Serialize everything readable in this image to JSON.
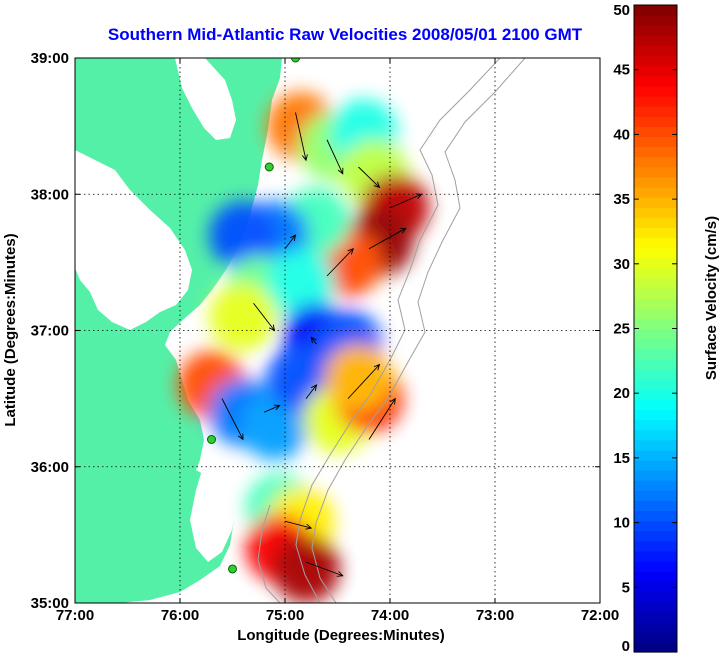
{
  "chart_data": {
    "type": "heatmap",
    "title": "Southern Mid-Atlantic Raw Velocities 2008/05/01 2100 GMT",
    "xlabel": "Longitude (Degrees:Minutes)",
    "ylabel": "Latitude (Degrees:Minutes)",
    "xlim": [
      -77,
      -72
    ],
    "ylim": [
      35,
      39
    ],
    "x_ticks": [
      {
        "value": -77,
        "label": "77:00"
      },
      {
        "value": -76,
        "label": "76:00"
      },
      {
        "value": -75,
        "label": "75:00"
      },
      {
        "value": -74,
        "label": "74:00"
      },
      {
        "value": -73,
        "label": "73:00"
      },
      {
        "value": -72,
        "label": "72:00"
      }
    ],
    "y_ticks": [
      {
        "value": 35,
        "label": "35:00"
      },
      {
        "value": 36,
        "label": "36:00"
      },
      {
        "value": 37,
        "label": "37:00"
      },
      {
        "value": 38,
        "label": "38:00"
      },
      {
        "value": 39,
        "label": "39:00"
      }
    ],
    "grid": true,
    "land_color": "#55f0a8",
    "colorbar": {
      "label": "Surface Velocity (cm/s)",
      "min": 0,
      "max": 50,
      "ticks": [
        0,
        5,
        10,
        15,
        20,
        25,
        30,
        35,
        40,
        45,
        50
      ],
      "colormap": "jet",
      "placement": "right"
    },
    "regions": [
      {
        "lon": -74.85,
        "lat": 38.5,
        "value": 38
      },
      {
        "lon": -74.55,
        "lat": 38.35,
        "value": 26
      },
      {
        "lon": -74.25,
        "lat": 38.45,
        "value": 20
      },
      {
        "lon": -74.15,
        "lat": 38.15,
        "value": 28
      },
      {
        "lon": -73.95,
        "lat": 37.9,
        "value": 47
      },
      {
        "lon": -74.1,
        "lat": 37.65,
        "value": 49
      },
      {
        "lon": -74.4,
        "lat": 37.5,
        "value": 40
      },
      {
        "lon": -74.7,
        "lat": 37.8,
        "value": 22
      },
      {
        "lon": -75.1,
        "lat": 37.7,
        "value": 12
      },
      {
        "lon": -75.4,
        "lat": 37.7,
        "value": 10
      },
      {
        "lon": -75.25,
        "lat": 37.3,
        "value": 24
      },
      {
        "lon": -74.85,
        "lat": 37.35,
        "value": 20
      },
      {
        "lon": -75.4,
        "lat": 37.1,
        "value": 30
      },
      {
        "lon": -74.7,
        "lat": 36.95,
        "value": 6
      },
      {
        "lon": -74.4,
        "lat": 36.9,
        "value": 10
      },
      {
        "lon": -75.7,
        "lat": 36.6,
        "value": 40
      },
      {
        "lon": -75.4,
        "lat": 36.4,
        "value": 12
      },
      {
        "lon": -75.1,
        "lat": 36.3,
        "value": 14
      },
      {
        "lon": -74.85,
        "lat": 36.65,
        "value": 10
      },
      {
        "lon": -74.5,
        "lat": 36.35,
        "value": 30
      },
      {
        "lon": -74.2,
        "lat": 36.5,
        "value": 42
      },
      {
        "lon": -74.3,
        "lat": 36.65,
        "value": 35
      },
      {
        "lon": -75.05,
        "lat": 35.7,
        "value": 22
      },
      {
        "lon": -74.85,
        "lat": 35.6,
        "value": 32
      },
      {
        "lon": -75.05,
        "lat": 35.4,
        "value": 44
      },
      {
        "lon": -74.8,
        "lat": 35.25,
        "value": 48
      }
    ],
    "arrows": [
      {
        "lon": -74.9,
        "lat": 38.6,
        "u": 0.1,
        "v": -0.35
      },
      {
        "lon": -74.6,
        "lat": 38.4,
        "u": 0.15,
        "v": -0.25
      },
      {
        "lon": -74.3,
        "lat": 38.2,
        "u": 0.2,
        "v": -0.15
      },
      {
        "lon": -74.0,
        "lat": 37.9,
        "u": 0.3,
        "v": 0.1
      },
      {
        "lon": -74.2,
        "lat": 37.6,
        "u": 0.35,
        "v": 0.15
      },
      {
        "lon": -74.6,
        "lat": 37.4,
        "u": 0.25,
        "v": 0.2
      },
      {
        "lon": -75.0,
        "lat": 37.6,
        "u": 0.1,
        "v": 0.1
      },
      {
        "lon": -75.3,
        "lat": 37.2,
        "u": 0.2,
        "v": -0.2
      },
      {
        "lon": -74.7,
        "lat": 36.9,
        "u": -0.05,
        "v": 0.05
      },
      {
        "lon": -75.6,
        "lat": 36.5,
        "u": 0.2,
        "v": -0.3
      },
      {
        "lon": -75.2,
        "lat": 36.4,
        "u": 0.15,
        "v": 0.05
      },
      {
        "lon": -74.8,
        "lat": 36.5,
        "u": 0.1,
        "v": 0.1
      },
      {
        "lon": -74.4,
        "lat": 36.5,
        "u": 0.3,
        "v": 0.25
      },
      {
        "lon": -74.2,
        "lat": 36.2,
        "u": 0.25,
        "v": 0.3
      },
      {
        "lon": -75.0,
        "lat": 35.6,
        "u": 0.25,
        "v": -0.05
      },
      {
        "lon": -74.8,
        "lat": 35.3,
        "u": 0.35,
        "v": -0.1
      }
    ],
    "stations": [
      {
        "lon": -74.9,
        "lat": 39.0
      },
      {
        "lon": -75.15,
        "lat": 38.2
      },
      {
        "lon": -75.7,
        "lat": 36.2
      },
      {
        "lon": -75.5,
        "lat": 35.25
      }
    ]
  }
}
